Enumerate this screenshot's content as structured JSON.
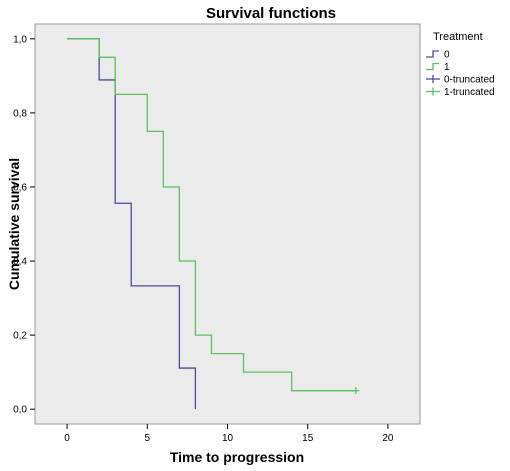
{
  "chart_data": {
    "type": "line",
    "step": true,
    "title": "Survival functions",
    "xlabel": "Time to progression",
    "ylabel": "Cumulative survival",
    "xlim": [
      -2,
      22
    ],
    "ylim": [
      -0.04,
      1.04
    ],
    "xticks": [
      0,
      5,
      10,
      15,
      20
    ],
    "xtick_labels": [
      "0",
      "5",
      "10",
      "15",
      "20"
    ],
    "yticks": [
      0.0,
      0.2,
      0.4,
      0.6,
      0.8,
      1.0
    ],
    "ytick_labels": [
      "0,0",
      "0,2",
      "0,4",
      "0,6",
      "0,8",
      "1,0"
    ],
    "grid": false,
    "background": "#ebebeb",
    "legend": {
      "title": "Treatment",
      "placement": "right",
      "items": [
        {
          "label": "0",
          "color": "#4b4b9e",
          "marker": "step"
        },
        {
          "label": "1",
          "color": "#5cc15c",
          "marker": "step"
        },
        {
          "label": "0-truncated",
          "color": "#4b4b9e",
          "marker": "plus"
        },
        {
          "label": "1-truncated",
          "color": "#5cc15c",
          "marker": "plus"
        }
      ]
    },
    "series": [
      {
        "name": "0",
        "color": "#4b4b9e",
        "x": [
          0,
          2,
          3,
          4,
          7,
          8
        ],
        "y": [
          1.0,
          0.889,
          0.556,
          0.333,
          0.111,
          0.0
        ]
      },
      {
        "name": "1",
        "color": "#5cc15c",
        "x": [
          0,
          2,
          3,
          5,
          6,
          7,
          8,
          9,
          11,
          14,
          18
        ],
        "y": [
          1.0,
          0.95,
          0.85,
          0.75,
          0.6,
          0.4,
          0.2,
          0.15,
          0.1,
          0.05,
          0.05
        ]
      }
    ],
    "censored": [
      {
        "series": "1-truncated",
        "x": 18,
        "y": 0.05,
        "color": "#5cc15c"
      }
    ]
  }
}
